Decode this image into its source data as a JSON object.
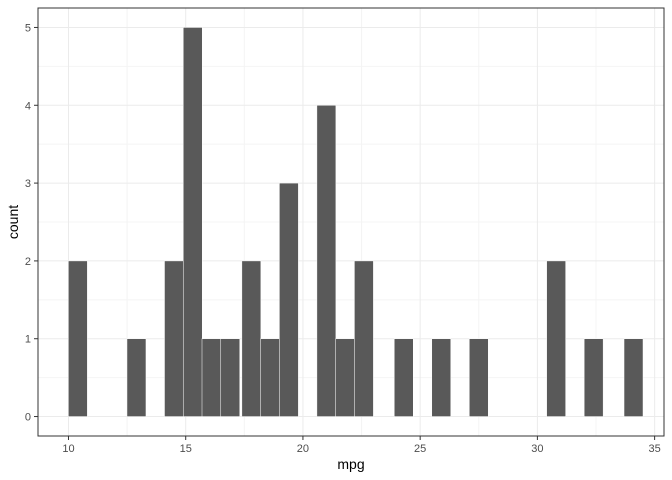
{
  "chart_data": {
    "type": "bar",
    "subtype": "histogram",
    "title": "",
    "xlabel": "mpg",
    "ylabel": "count",
    "xlim": [
      8.7,
      35.4
    ],
    "ylim": [
      -0.25,
      5.25
    ],
    "x_ticks": [
      10,
      15,
      20,
      25,
      30,
      35
    ],
    "x_tick_labels": [
      "10",
      "15",
      "20",
      "25",
      "30",
      "35"
    ],
    "y_ticks": [
      0,
      1,
      2,
      3,
      4,
      5
    ],
    "y_tick_labels": [
      "0",
      "1",
      "2",
      "3",
      "4",
      "5"
    ],
    "grid": true,
    "bins": [
      {
        "x": 10.4,
        "count": 2
      },
      {
        "x": 11.2,
        "count": 0
      },
      {
        "x": 12.0,
        "count": 0
      },
      {
        "x": 12.9,
        "count": 1
      },
      {
        "x": 13.7,
        "count": 0
      },
      {
        "x": 14.5,
        "count": 2
      },
      {
        "x": 15.3,
        "count": 5
      },
      {
        "x": 16.1,
        "count": 1
      },
      {
        "x": 16.9,
        "count": 1
      },
      {
        "x": 17.8,
        "count": 2
      },
      {
        "x": 18.6,
        "count": 1
      },
      {
        "x": 19.4,
        "count": 3
      },
      {
        "x": 20.2,
        "count": 0
      },
      {
        "x": 21.0,
        "count": 4
      },
      {
        "x": 21.8,
        "count": 1
      },
      {
        "x": 22.6,
        "count": 2
      },
      {
        "x": 23.5,
        "count": 0
      },
      {
        "x": 24.3,
        "count": 1
      },
      {
        "x": 25.1,
        "count": 0
      },
      {
        "x": 25.9,
        "count": 1
      },
      {
        "x": 26.7,
        "count": 0
      },
      {
        "x": 27.5,
        "count": 1
      },
      {
        "x": 28.4,
        "count": 0
      },
      {
        "x": 29.2,
        "count": 0
      },
      {
        "x": 30.0,
        "count": 0
      },
      {
        "x": 30.8,
        "count": 2
      },
      {
        "x": 31.6,
        "count": 0
      },
      {
        "x": 32.4,
        "count": 1
      },
      {
        "x": 33.2,
        "count": 0
      },
      {
        "x": 34.1,
        "count": 1
      }
    ],
    "binwidth": 0.81,
    "colors": {
      "bar_fill": "#595959",
      "bar_outline": "#ffffff",
      "grid_major": "#ebebeb",
      "grid_minor": "#f4f4f4",
      "panel_border": "#333333",
      "tick_text": "#4d4d4d"
    }
  }
}
